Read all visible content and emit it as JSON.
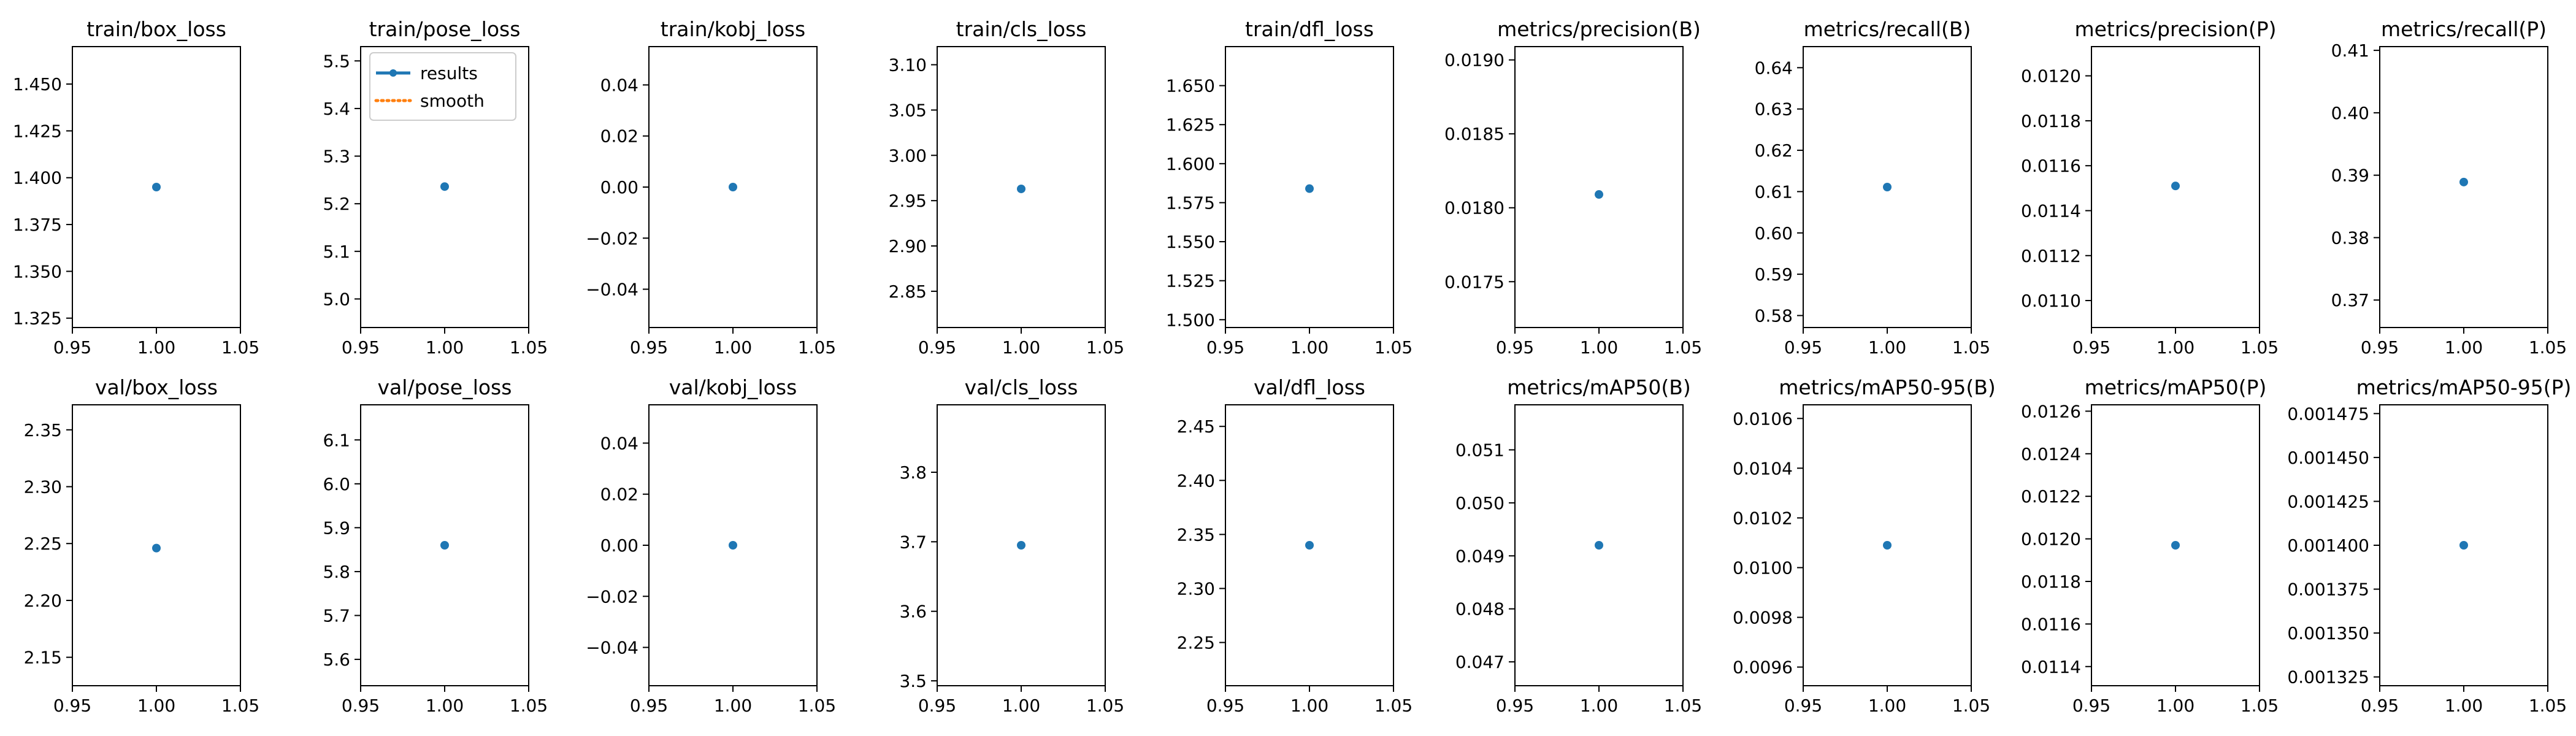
{
  "legend": {
    "results_label": "results",
    "smooth_label": "smooth"
  },
  "colors": {
    "results": "#1f77b4",
    "smooth": "#ff7f0e",
    "axes": "#000000",
    "background": "#ffffff"
  },
  "chart_data": [
    {
      "type": "scatter",
      "title": "train/box_loss",
      "x": [
        1.0
      ],
      "y": [
        1.395
      ],
      "xlim": [
        0.95,
        1.05
      ],
      "ylim": [
        1.32,
        1.47
      ],
      "yticks": [
        "1.325",
        "1.350",
        "1.375",
        "1.400",
        "1.425",
        "1.450"
      ],
      "ytick_values": [
        1.325,
        1.35,
        1.375,
        1.4,
        1.425,
        1.45
      ]
    },
    {
      "type": "scatter",
      "title": "train/pose_loss",
      "x": [
        1.0
      ],
      "y": [
        5.236
      ],
      "xlim": [
        0.95,
        1.05
      ],
      "ylim": [
        4.94,
        5.53
      ],
      "yticks": [
        "5.0",
        "5.1",
        "5.2",
        "5.3",
        "5.4",
        "5.5"
      ],
      "ytick_values": [
        5.0,
        5.1,
        5.2,
        5.3,
        5.4,
        5.5
      ],
      "legend": true
    },
    {
      "type": "scatter",
      "title": "train/kobj_loss",
      "x": [
        1.0
      ],
      "y": [
        0.0
      ],
      "xlim": [
        0.95,
        1.05
      ],
      "ylim": [
        -0.055,
        0.055
      ],
      "yticks": [
        "−0.04",
        "−0.02",
        "0.00",
        "0.02",
        "0.04"
      ],
      "ytick_values": [
        -0.04,
        -0.02,
        0.0,
        0.02,
        0.04
      ]
    },
    {
      "type": "scatter",
      "title": "train/cls_loss",
      "x": [
        1.0
      ],
      "y": [
        2.963
      ],
      "xlim": [
        0.95,
        1.05
      ],
      "ylim": [
        2.81,
        3.12
      ],
      "yticks": [
        "2.85",
        "2.90",
        "2.95",
        "3.00",
        "3.05",
        "3.10"
      ],
      "ytick_values": [
        2.85,
        2.9,
        2.95,
        3.0,
        3.05,
        3.1
      ]
    },
    {
      "type": "scatter",
      "title": "train/dfl_loss",
      "x": [
        1.0
      ],
      "y": [
        1.584
      ],
      "xlim": [
        0.95,
        1.05
      ],
      "ylim": [
        1.495,
        1.675
      ],
      "yticks": [
        "1.500",
        "1.525",
        "1.550",
        "1.575",
        "1.600",
        "1.625",
        "1.650"
      ],
      "ytick_values": [
        1.5,
        1.525,
        1.55,
        1.575,
        1.6,
        1.625,
        1.65
      ]
    },
    {
      "type": "scatter",
      "title": "metrics/precision(B)",
      "x": [
        1.0
      ],
      "y": [
        0.01809
      ],
      "xlim": [
        0.95,
        1.05
      ],
      "ylim": [
        0.01719,
        0.01909
      ],
      "yticks": [
        "0.0175",
        "0.0180",
        "0.0185",
        "0.0190"
      ],
      "ytick_values": [
        0.0175,
        0.018,
        0.0185,
        0.019
      ]
    },
    {
      "type": "scatter",
      "title": "metrics/recall(B)",
      "x": [
        1.0
      ],
      "y": [
        0.6111
      ],
      "xlim": [
        0.95,
        1.05
      ],
      "ylim": [
        0.5771,
        0.6451
      ],
      "yticks": [
        "0.58",
        "0.59",
        "0.60",
        "0.61",
        "0.62",
        "0.63",
        "0.64"
      ],
      "ytick_values": [
        0.58,
        0.59,
        0.6,
        0.61,
        0.62,
        0.63,
        0.64
      ]
    },
    {
      "type": "scatter",
      "title": "metrics/precision(P)",
      "x": [
        1.0
      ],
      "y": [
        0.01151
      ],
      "xlim": [
        0.95,
        1.05
      ],
      "ylim": [
        0.01088,
        0.01213
      ],
      "yticks": [
        "0.0110",
        "0.0112",
        "0.0114",
        "0.0116",
        "0.0118",
        "0.0120"
      ],
      "ytick_values": [
        0.011,
        0.0112,
        0.0114,
        0.0116,
        0.0118,
        0.012
      ]
    },
    {
      "type": "scatter",
      "title": "metrics/recall(P)",
      "x": [
        1.0
      ],
      "y": [
        0.3889
      ],
      "xlim": [
        0.95,
        1.05
      ],
      "ylim": [
        0.3656,
        0.4106
      ],
      "yticks": [
        "0.37",
        "0.38",
        "0.39",
        "0.40",
        "0.41"
      ],
      "ytick_values": [
        0.37,
        0.38,
        0.39,
        0.4,
        0.41
      ]
    },
    {
      "type": "scatter",
      "title": "val/box_loss",
      "x": [
        1.0
      ],
      "y": [
        2.246
      ],
      "xlim": [
        0.95,
        1.05
      ],
      "ylim": [
        2.125,
        2.372
      ],
      "yticks": [
        "2.15",
        "2.20",
        "2.25",
        "2.30",
        "2.35"
      ],
      "ytick_values": [
        2.15,
        2.2,
        2.25,
        2.3,
        2.35
      ]
    },
    {
      "type": "scatter",
      "title": "val/pose_loss",
      "x": [
        1.0
      ],
      "y": [
        5.86
      ],
      "xlim": [
        0.95,
        1.05
      ],
      "ylim": [
        5.54,
        6.18
      ],
      "yticks": [
        "5.6",
        "5.7",
        "5.8",
        "5.9",
        "6.0",
        "6.1"
      ],
      "ytick_values": [
        5.6,
        5.7,
        5.8,
        5.9,
        6.0,
        6.1
      ]
    },
    {
      "type": "scatter",
      "title": "val/kobj_loss",
      "x": [
        1.0
      ],
      "y": [
        0.0
      ],
      "xlim": [
        0.95,
        1.05
      ],
      "ylim": [
        -0.055,
        0.055
      ],
      "yticks": [
        "−0.04",
        "−0.02",
        "0.00",
        "0.02",
        "0.04"
      ],
      "ytick_values": [
        -0.04,
        -0.02,
        0.0,
        0.02,
        0.04
      ]
    },
    {
      "type": "scatter",
      "title": "val/cls_loss",
      "x": [
        1.0
      ],
      "y": [
        3.695
      ],
      "xlim": [
        0.95,
        1.05
      ],
      "ylim": [
        3.493,
        3.897
      ],
      "yticks": [
        "3.5",
        "3.6",
        "3.7",
        "3.8"
      ],
      "ytick_values": [
        3.5,
        3.6,
        3.7,
        3.8
      ]
    },
    {
      "type": "scatter",
      "title": "val/dfl_loss",
      "x": [
        1.0
      ],
      "y": [
        2.34
      ],
      "xlim": [
        0.95,
        1.05
      ],
      "ylim": [
        2.21,
        2.47
      ],
      "yticks": [
        "2.25",
        "2.30",
        "2.35",
        "2.40",
        "2.45"
      ],
      "ytick_values": [
        2.25,
        2.3,
        2.35,
        2.4,
        2.45
      ]
    },
    {
      "type": "scatter",
      "title": "metrics/mAP50(B)",
      "x": [
        1.0
      ],
      "y": [
        0.0492
      ],
      "xlim": [
        0.95,
        1.05
      ],
      "ylim": [
        0.04655,
        0.05185
      ],
      "yticks": [
        "0.047",
        "0.048",
        "0.049",
        "0.050",
        "0.051"
      ],
      "ytick_values": [
        0.047,
        0.048,
        0.049,
        0.05,
        0.051
      ]
    },
    {
      "type": "scatter",
      "title": "metrics/mAP50-95(B)",
      "x": [
        1.0
      ],
      "y": [
        0.01009
      ],
      "xlim": [
        0.95,
        1.05
      ],
      "ylim": [
        0.009525,
        0.010655
      ],
      "yticks": [
        "0.0096",
        "0.0098",
        "0.0100",
        "0.0102",
        "0.0104",
        "0.0106"
      ],
      "ytick_values": [
        0.0096,
        0.0098,
        0.01,
        0.0102,
        0.0104,
        0.0106
      ]
    },
    {
      "type": "scatter",
      "title": "metrics/mAP50(P)",
      "x": [
        1.0
      ],
      "y": [
        0.01197
      ],
      "xlim": [
        0.95,
        1.05
      ],
      "ylim": [
        0.01131,
        0.01263
      ],
      "yticks": [
        "0.0114",
        "0.0116",
        "0.0118",
        "0.0120",
        "0.0122",
        "0.0124",
        "0.0126"
      ],
      "ytick_values": [
        0.0114,
        0.0116,
        0.0118,
        0.012,
        0.0122,
        0.0124,
        0.0126
      ]
    },
    {
      "type": "scatter",
      "title": "metrics/mAP50-95(P)",
      "x": [
        1.0
      ],
      "y": [
        0.0014
      ],
      "xlim": [
        0.95,
        1.05
      ],
      "ylim": [
        0.00132,
        0.00148
      ],
      "yticks": [
        "0.001325",
        "0.001350",
        "0.001375",
        "0.001400",
        "0.001425",
        "0.001450",
        "0.001475"
      ],
      "ytick_values": [
        0.001325,
        0.00135,
        0.001375,
        0.0014,
        0.001425,
        0.00145,
        0.001475
      ]
    }
  ],
  "xticks": [
    "0.95",
    "1.00",
    "1.05"
  ],
  "xtick_values": [
    0.95,
    1.0,
    1.05
  ]
}
